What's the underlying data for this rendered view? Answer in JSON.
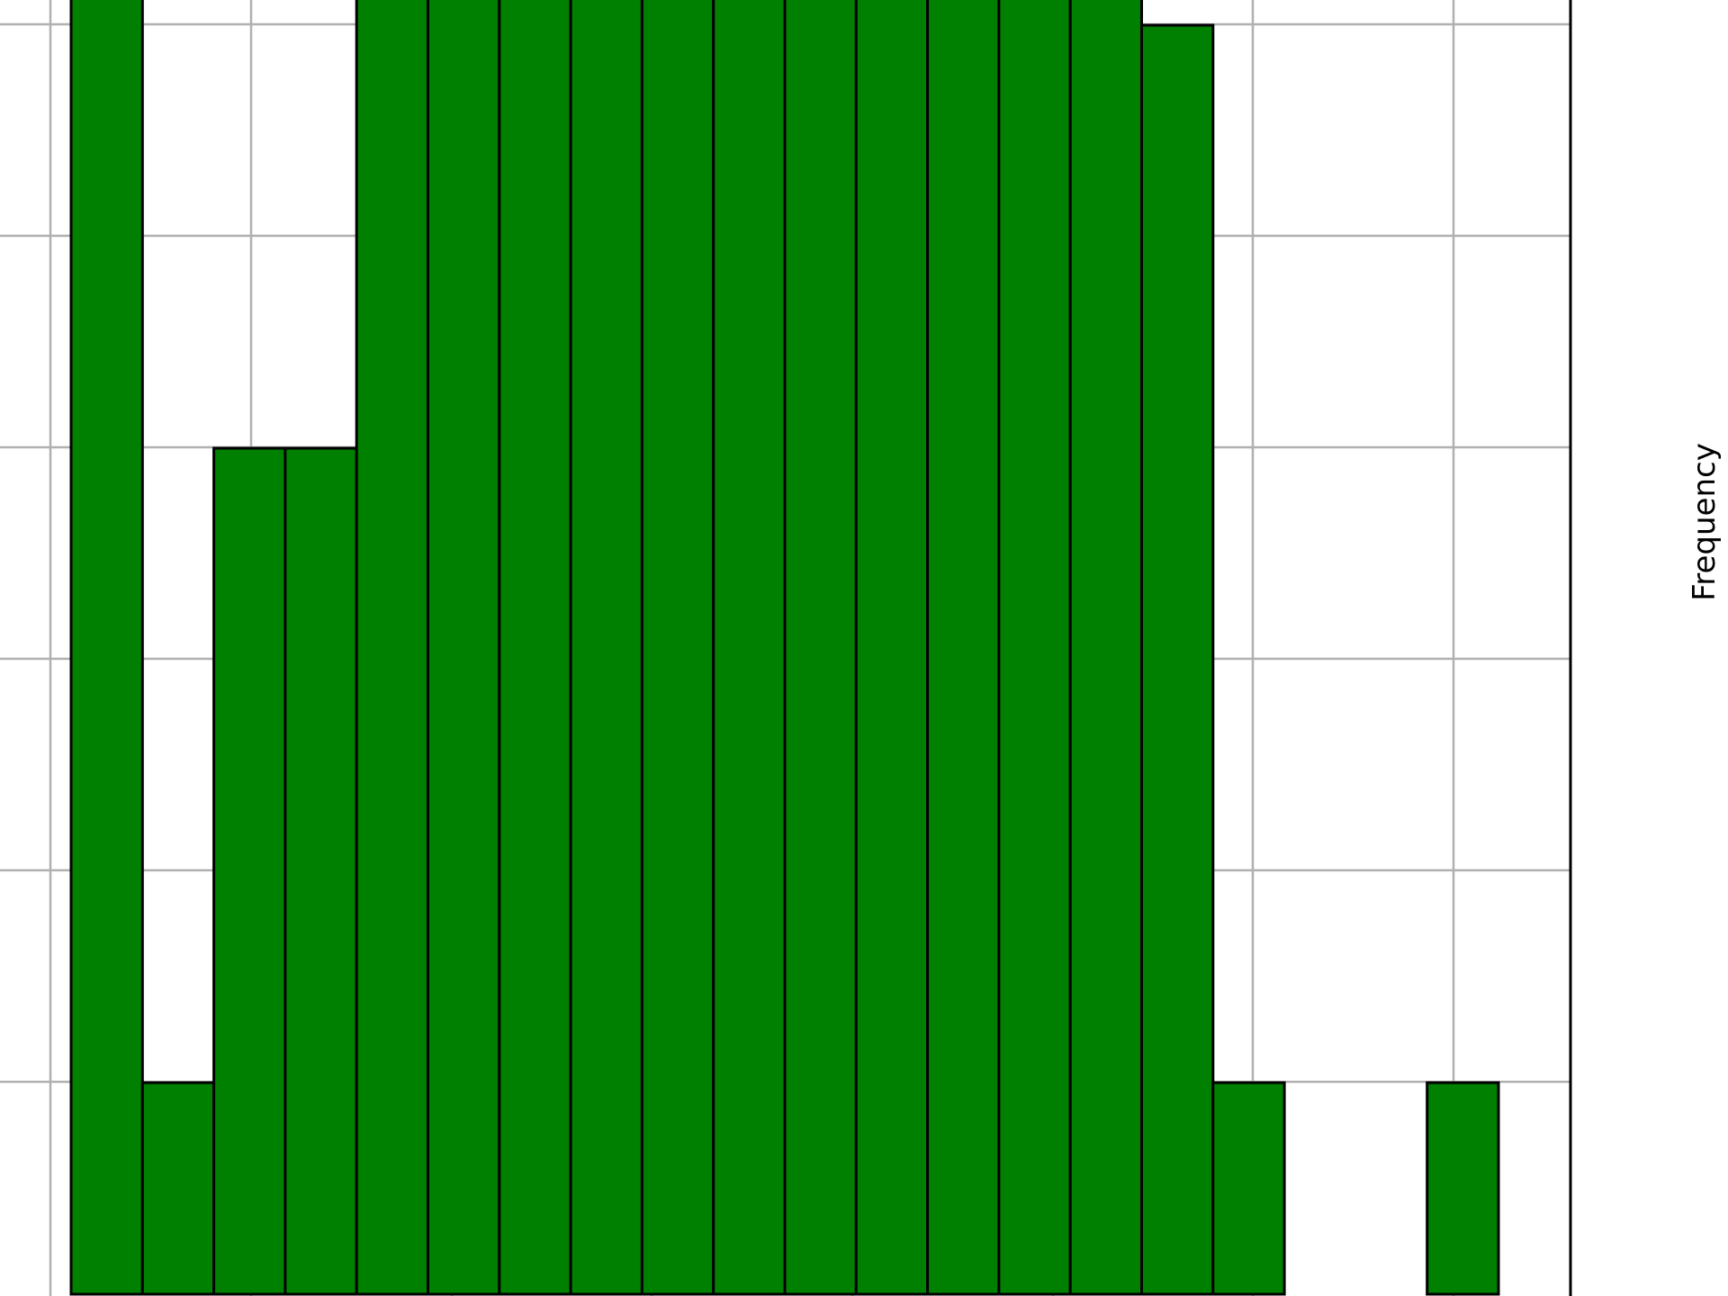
{
  "chart_data": {
    "type": "bar",
    "histogram": true,
    "bin_count": 21,
    "values": [
      8,
      1,
      4,
      4,
      10,
      11,
      8,
      11,
      10,
      10,
      11,
      10,
      11,
      10,
      8,
      6,
      1,
      0,
      0,
      1,
      0
    ],
    "ylabel": "Frequency",
    "xlabel": "",
    "title": "",
    "grid": true,
    "bar_color": "#008000",
    "edge_color": "#000000",
    "grid_color": "#b0b0b0"
  }
}
